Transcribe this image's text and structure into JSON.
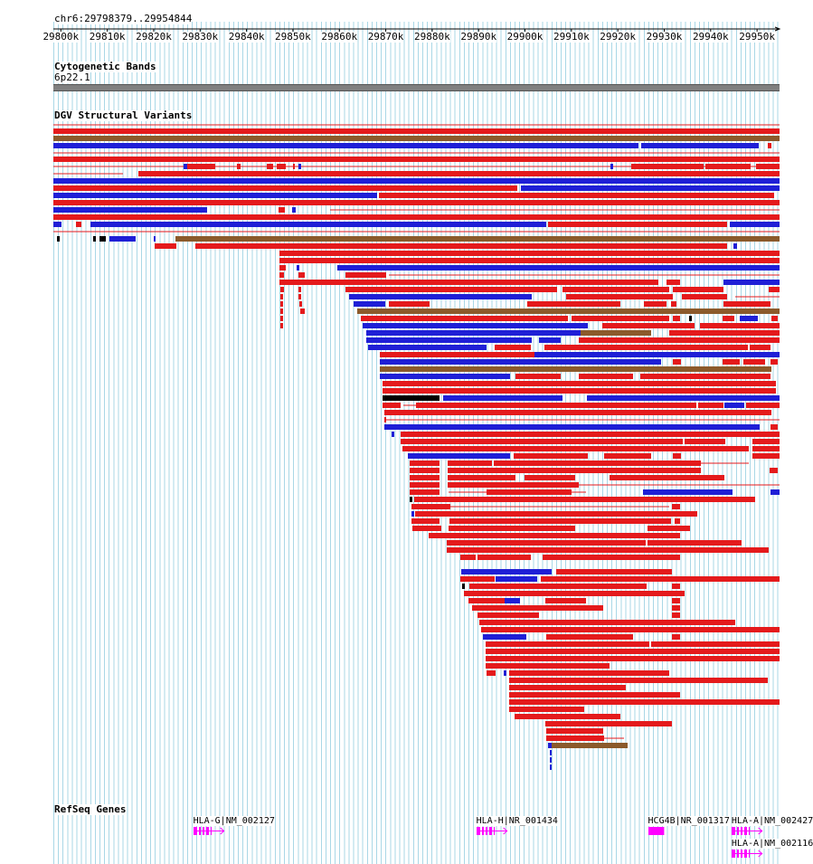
{
  "position": "chr6:29798379..29954844",
  "ruler": {
    "ticks": [
      "29800k",
      "29810k",
      "29820k",
      "29830k",
      "29840k",
      "29850k",
      "29860k",
      "29870k",
      "29880k",
      "29890k",
      "29900k",
      "29910k",
      "29920k",
      "29930k",
      "29940k",
      "29950k"
    ]
  },
  "tracks": {
    "cytoband": {
      "title": "Cytogenetic Bands",
      "band": "6p22.1"
    },
    "dgv": {
      "title": "DGV Structural Variants"
    },
    "refseq": {
      "title": "RefSeq Genes"
    }
  },
  "genes": [
    {
      "label": "HLA-G|NM_002127",
      "kb": 29828.5,
      "end_kb": 29833.5,
      "row": 0
    },
    {
      "label": "HLA-H|NR_001434",
      "kb": 29889.5,
      "end_kb": 29894.5,
      "row": 0
    },
    {
      "label": "HCG4B|NR_001317",
      "kb": 29926.5,
      "end_kb": 29929.5,
      "row": 0,
      "solid": true
    },
    {
      "label": "HLA-A|NM_002427",
      "kb": 29944.5,
      "end_kb": 29949.5,
      "row": 0
    },
    {
      "label": "HLA-A|NM_002116",
      "kb": 29944.5,
      "end_kb": 29949.5,
      "row": 1
    }
  ],
  "colors": {
    "loss": "#e41a1c",
    "gain": "#1f1fd6",
    "both": "#8b5a2b",
    "other": "#000000",
    "gene": "#ff00ff",
    "grid": "#a9d7e6"
  },
  "scale": {
    "start_kb": 29798.379,
    "end_kb": 29954.844
  }
}
